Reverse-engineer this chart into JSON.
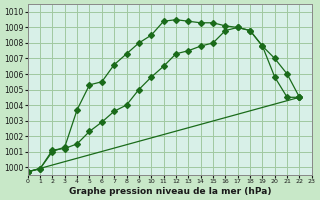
{
  "title": "Graphe pression niveau de la mer (hPa)",
  "bg_color": "#c8e8c8",
  "plot_bg_color": "#d8f0e8",
  "grid_color": "#a0c8a0",
  "line_color": "#1a6b1a",
  "xlim": [
    0,
    23
  ],
  "ylim": [
    999.5,
    1010.5
  ],
  "yticks": [
    1000,
    1001,
    1002,
    1003,
    1004,
    1005,
    1006,
    1007,
    1008,
    1009,
    1010
  ],
  "xticks": [
    0,
    1,
    2,
    3,
    4,
    5,
    6,
    7,
    8,
    9,
    10,
    11,
    12,
    13,
    14,
    15,
    16,
    17,
    18,
    19,
    20,
    21,
    22,
    23
  ],
  "line1_x": [
    0,
    1,
    2,
    3,
    4,
    5,
    6,
    7,
    8,
    9,
    10,
    11,
    12,
    13,
    14,
    15,
    16,
    17,
    18,
    19,
    20,
    21,
    22
  ],
  "line1_y": [
    999.7,
    999.9,
    1001.0,
    1001.3,
    1003.7,
    1005.3,
    1005.5,
    1006.6,
    1007.3,
    1008.0,
    1008.5,
    1009.4,
    1009.5,
    1009.4,
    1009.3,
    1009.3,
    1009.1,
    1009.0,
    1008.8,
    1007.8,
    1007.0,
    1006.0,
    1004.5
  ],
  "line2_x": [
    0,
    1,
    2,
    3,
    4,
    5,
    6,
    7,
    8,
    9,
    10,
    11,
    12,
    13,
    14,
    15,
    16,
    17,
    18,
    19,
    20,
    21,
    22
  ],
  "line2_y": [
    999.7,
    999.9,
    1001.1,
    1001.2,
    1001.5,
    1002.3,
    1002.9,
    1003.6,
    1004.0,
    1005.0,
    1005.8,
    1006.5,
    1007.3,
    1007.5,
    1007.8,
    1008.0,
    1008.8,
    1009.0,
    1008.8,
    1007.8,
    1005.8,
    1004.5,
    1004.5
  ],
  "line3_x": [
    0,
    22
  ],
  "line3_y": [
    999.7,
    1004.5
  ]
}
